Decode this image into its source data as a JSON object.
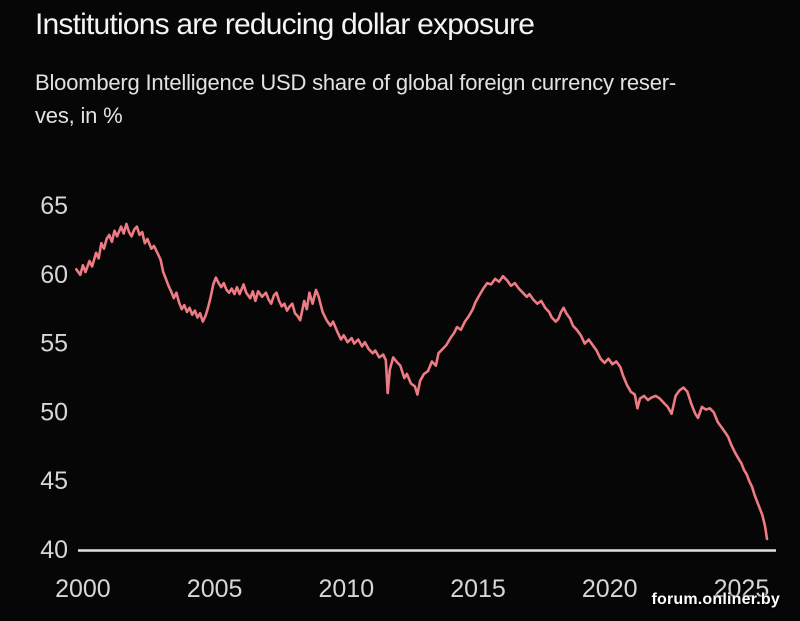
{
  "page": {
    "title": "Institutions are reducing dollar exposure",
    "subtitle_line1": "Bloomberg Intelligence USD share of global foreign currency reser-",
    "subtitle_line2": "ves, in %",
    "watermark": "forum.onliner.by"
  },
  "colors": {
    "background": "#060606",
    "title_text": "#f4f4f4",
    "subtitle_text": "#e2e2e2",
    "line": "#ee7a84",
    "axis_line": "#e0e0e0",
    "tick_text": "#d6d6d6",
    "watermark_text": "#ffffff"
  },
  "chart_data": {
    "type": "line",
    "title": "Institutions are reducing dollar exposure",
    "subtitle": "Bloomberg Intelligence USD share of global foreign currency reserves, in %",
    "xlabel": "",
    "ylabel": "",
    "xticks": [
      2000,
      2005,
      2010,
      2015,
      2020,
      2025
    ],
    "yticks": [
      65,
      60,
      55,
      50,
      45,
      40
    ],
    "xlim": [
      1999.7,
      2026.35
    ],
    "ylim": [
      40,
      65
    ],
    "grid": false,
    "legend": false,
    "series": [
      {
        "name": "USD share of global foreign currency reserves (%)",
        "points": [
          [
            1999.75,
            60.4
          ],
          [
            1999.9,
            60.0
          ],
          [
            2000.0,
            60.7
          ],
          [
            2000.1,
            60.2
          ],
          [
            2000.25,
            61.0
          ],
          [
            2000.35,
            60.6
          ],
          [
            2000.5,
            61.6
          ],
          [
            2000.6,
            61.2
          ],
          [
            2000.7,
            62.3
          ],
          [
            2000.8,
            61.9
          ],
          [
            2000.9,
            62.6
          ],
          [
            2001.0,
            62.9
          ],
          [
            2001.1,
            62.4
          ],
          [
            2001.2,
            63.2
          ],
          [
            2001.3,
            62.8
          ],
          [
            2001.45,
            63.5
          ],
          [
            2001.55,
            63.0
          ],
          [
            2001.65,
            63.7
          ],
          [
            2001.75,
            63.1
          ],
          [
            2001.85,
            62.8
          ],
          [
            2001.95,
            63.3
          ],
          [
            2002.05,
            63.5
          ],
          [
            2002.15,
            62.9
          ],
          [
            2002.25,
            63.1
          ],
          [
            2002.35,
            62.3
          ],
          [
            2002.45,
            62.6
          ],
          [
            2002.6,
            61.9
          ],
          [
            2002.7,
            62.1
          ],
          [
            2002.85,
            61.5
          ],
          [
            2002.95,
            61.1
          ],
          [
            2003.05,
            60.2
          ],
          [
            2003.15,
            59.7
          ],
          [
            2003.25,
            59.2
          ],
          [
            2003.35,
            58.8
          ],
          [
            2003.45,
            58.3
          ],
          [
            2003.55,
            58.7
          ],
          [
            2003.65,
            58.0
          ],
          [
            2003.75,
            57.5
          ],
          [
            2003.85,
            57.8
          ],
          [
            2003.95,
            57.3
          ],
          [
            2004.05,
            57.6
          ],
          [
            2004.15,
            57.1
          ],
          [
            2004.25,
            57.4
          ],
          [
            2004.35,
            56.9
          ],
          [
            2004.45,
            57.2
          ],
          [
            2004.55,
            56.6
          ],
          [
            2004.65,
            57.0
          ],
          [
            2004.75,
            57.6
          ],
          [
            2004.85,
            58.4
          ],
          [
            2004.95,
            59.3
          ],
          [
            2005.05,
            59.8
          ],
          [
            2005.15,
            59.4
          ],
          [
            2005.25,
            59.1
          ],
          [
            2005.35,
            59.4
          ],
          [
            2005.45,
            58.9
          ],
          [
            2005.55,
            58.7
          ],
          [
            2005.65,
            59.0
          ],
          [
            2005.75,
            58.6
          ],
          [
            2005.85,
            59.1
          ],
          [
            2005.95,
            58.6
          ],
          [
            2006.1,
            59.3
          ],
          [
            2006.2,
            58.7
          ],
          [
            2006.35,
            58.3
          ],
          [
            2006.45,
            58.8
          ],
          [
            2006.55,
            58.1
          ],
          [
            2006.65,
            58.8
          ],
          [
            2006.8,
            58.4
          ],
          [
            2006.95,
            58.7
          ],
          [
            2007.05,
            58.2
          ],
          [
            2007.15,
            57.9
          ],
          [
            2007.25,
            58.5
          ],
          [
            2007.35,
            58.7
          ],
          [
            2007.45,
            58.1
          ],
          [
            2007.55,
            57.7
          ],
          [
            2007.65,
            57.9
          ],
          [
            2007.75,
            57.4
          ],
          [
            2007.85,
            57.7
          ],
          [
            2007.95,
            57.9
          ],
          [
            2008.05,
            57.2
          ],
          [
            2008.15,
            57.0
          ],
          [
            2008.25,
            56.7
          ],
          [
            2008.4,
            58.1
          ],
          [
            2008.5,
            57.5
          ],
          [
            2008.6,
            58.7
          ],
          [
            2008.72,
            57.9
          ],
          [
            2008.85,
            58.9
          ],
          [
            2008.95,
            58.4
          ],
          [
            2009.1,
            57.3
          ],
          [
            2009.25,
            56.7
          ],
          [
            2009.4,
            56.3
          ],
          [
            2009.5,
            56.6
          ],
          [
            2009.65,
            55.9
          ],
          [
            2009.8,
            55.3
          ],
          [
            2009.9,
            55.6
          ],
          [
            2010.05,
            55.1
          ],
          [
            2010.2,
            55.4
          ],
          [
            2010.3,
            55.0
          ],
          [
            2010.45,
            55.3
          ],
          [
            2010.6,
            54.8
          ],
          [
            2010.7,
            55.1
          ],
          [
            2010.85,
            54.6
          ],
          [
            2011.0,
            54.3
          ],
          [
            2011.1,
            54.5
          ],
          [
            2011.25,
            54.0
          ],
          [
            2011.4,
            54.2
          ],
          [
            2011.5,
            53.8
          ],
          [
            2011.57,
            51.4
          ],
          [
            2011.65,
            53.1
          ],
          [
            2011.78,
            54.0
          ],
          [
            2011.9,
            53.7
          ],
          [
            2012.05,
            53.4
          ],
          [
            2012.2,
            52.5
          ],
          [
            2012.3,
            52.8
          ],
          [
            2012.45,
            52.1
          ],
          [
            2012.6,
            51.9
          ],
          [
            2012.7,
            51.3
          ],
          [
            2012.8,
            52.3
          ],
          [
            2012.95,
            52.8
          ],
          [
            2013.1,
            53.0
          ],
          [
            2013.25,
            53.7
          ],
          [
            2013.4,
            53.4
          ],
          [
            2013.5,
            54.3
          ],
          [
            2013.65,
            54.6
          ],
          [
            2013.8,
            54.9
          ],
          [
            2013.95,
            55.4
          ],
          [
            2014.1,
            55.8
          ],
          [
            2014.2,
            56.2
          ],
          [
            2014.35,
            56.0
          ],
          [
            2014.5,
            56.6
          ],
          [
            2014.65,
            57.0
          ],
          [
            2014.8,
            57.5
          ],
          [
            2014.9,
            58.0
          ],
          [
            2015.05,
            58.5
          ],
          [
            2015.2,
            59.0
          ],
          [
            2015.35,
            59.4
          ],
          [
            2015.5,
            59.3
          ],
          [
            2015.65,
            59.7
          ],
          [
            2015.8,
            59.5
          ],
          [
            2015.95,
            59.9
          ],
          [
            2016.1,
            59.6
          ],
          [
            2016.25,
            59.2
          ],
          [
            2016.4,
            59.4
          ],
          [
            2016.55,
            59.0
          ],
          [
            2016.7,
            58.7
          ],
          [
            2016.85,
            58.4
          ],
          [
            2016.95,
            58.6
          ],
          [
            2017.1,
            58.2
          ],
          [
            2017.25,
            57.9
          ],
          [
            2017.4,
            58.1
          ],
          [
            2017.55,
            57.6
          ],
          [
            2017.7,
            57.3
          ],
          [
            2017.8,
            56.9
          ],
          [
            2017.95,
            56.6
          ],
          [
            2018.05,
            56.8
          ],
          [
            2018.15,
            57.3
          ],
          [
            2018.25,
            57.6
          ],
          [
            2018.35,
            57.2
          ],
          [
            2018.5,
            56.8
          ],
          [
            2018.6,
            56.3
          ],
          [
            2018.75,
            56.0
          ],
          [
            2018.9,
            55.6
          ],
          [
            2019.05,
            55.0
          ],
          [
            2019.2,
            55.3
          ],
          [
            2019.35,
            54.9
          ],
          [
            2019.5,
            54.5
          ],
          [
            2019.65,
            53.9
          ],
          [
            2019.8,
            53.6
          ],
          [
            2019.95,
            53.9
          ],
          [
            2020.1,
            53.5
          ],
          [
            2020.25,
            53.7
          ],
          [
            2020.4,
            53.3
          ],
          [
            2020.5,
            52.7
          ],
          [
            2020.65,
            52.0
          ],
          [
            2020.8,
            51.5
          ],
          [
            2020.95,
            51.3
          ],
          [
            2021.05,
            50.3
          ],
          [
            2021.15,
            51.0
          ],
          [
            2021.3,
            51.2
          ],
          [
            2021.45,
            50.9
          ],
          [
            2021.6,
            51.1
          ],
          [
            2021.75,
            51.2
          ],
          [
            2021.9,
            51.0
          ],
          [
            2022.05,
            50.7
          ],
          [
            2022.2,
            50.4
          ],
          [
            2022.35,
            49.9
          ],
          [
            2022.5,
            51.2
          ],
          [
            2022.65,
            51.6
          ],
          [
            2022.8,
            51.8
          ],
          [
            2022.95,
            51.5
          ],
          [
            2023.1,
            50.6
          ],
          [
            2023.25,
            49.9
          ],
          [
            2023.35,
            49.6
          ],
          [
            2023.5,
            50.4
          ],
          [
            2023.65,
            50.2
          ],
          [
            2023.8,
            50.3
          ],
          [
            2023.95,
            50.0
          ],
          [
            2024.1,
            49.3
          ],
          [
            2024.25,
            48.9
          ],
          [
            2024.4,
            48.5
          ],
          [
            2024.5,
            48.2
          ],
          [
            2024.6,
            47.7
          ],
          [
            2024.75,
            47.1
          ],
          [
            2024.9,
            46.6
          ],
          [
            2025.0,
            46.3
          ],
          [
            2025.1,
            45.8
          ],
          [
            2025.2,
            45.5
          ],
          [
            2025.3,
            45.0
          ],
          [
            2025.4,
            44.6
          ],
          [
            2025.5,
            44.0
          ],
          [
            2025.6,
            43.5
          ],
          [
            2025.7,
            43.0
          ],
          [
            2025.8,
            42.5
          ],
          [
            2025.9,
            41.7
          ],
          [
            2025.97,
            40.8
          ]
        ]
      }
    ]
  }
}
